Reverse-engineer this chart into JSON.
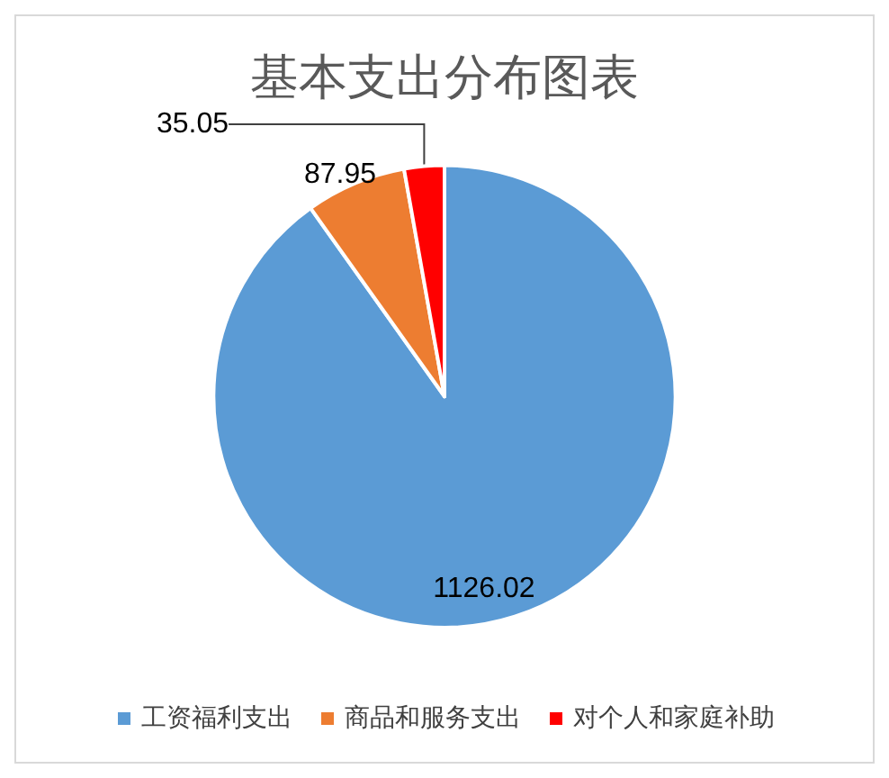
{
  "chart_data": {
    "type": "pie",
    "title": "基本支出分布图表",
    "categories": [
      "工资福利支出",
      "商品和服务支出",
      "对个人和家庭补助"
    ],
    "values": [
      1126.02,
      87.95,
      35.05
    ],
    "colors": [
      "#5b9bd5",
      "#ed7d31",
      "#ff0000"
    ],
    "data_labels": true,
    "legend": "bottom"
  }
}
